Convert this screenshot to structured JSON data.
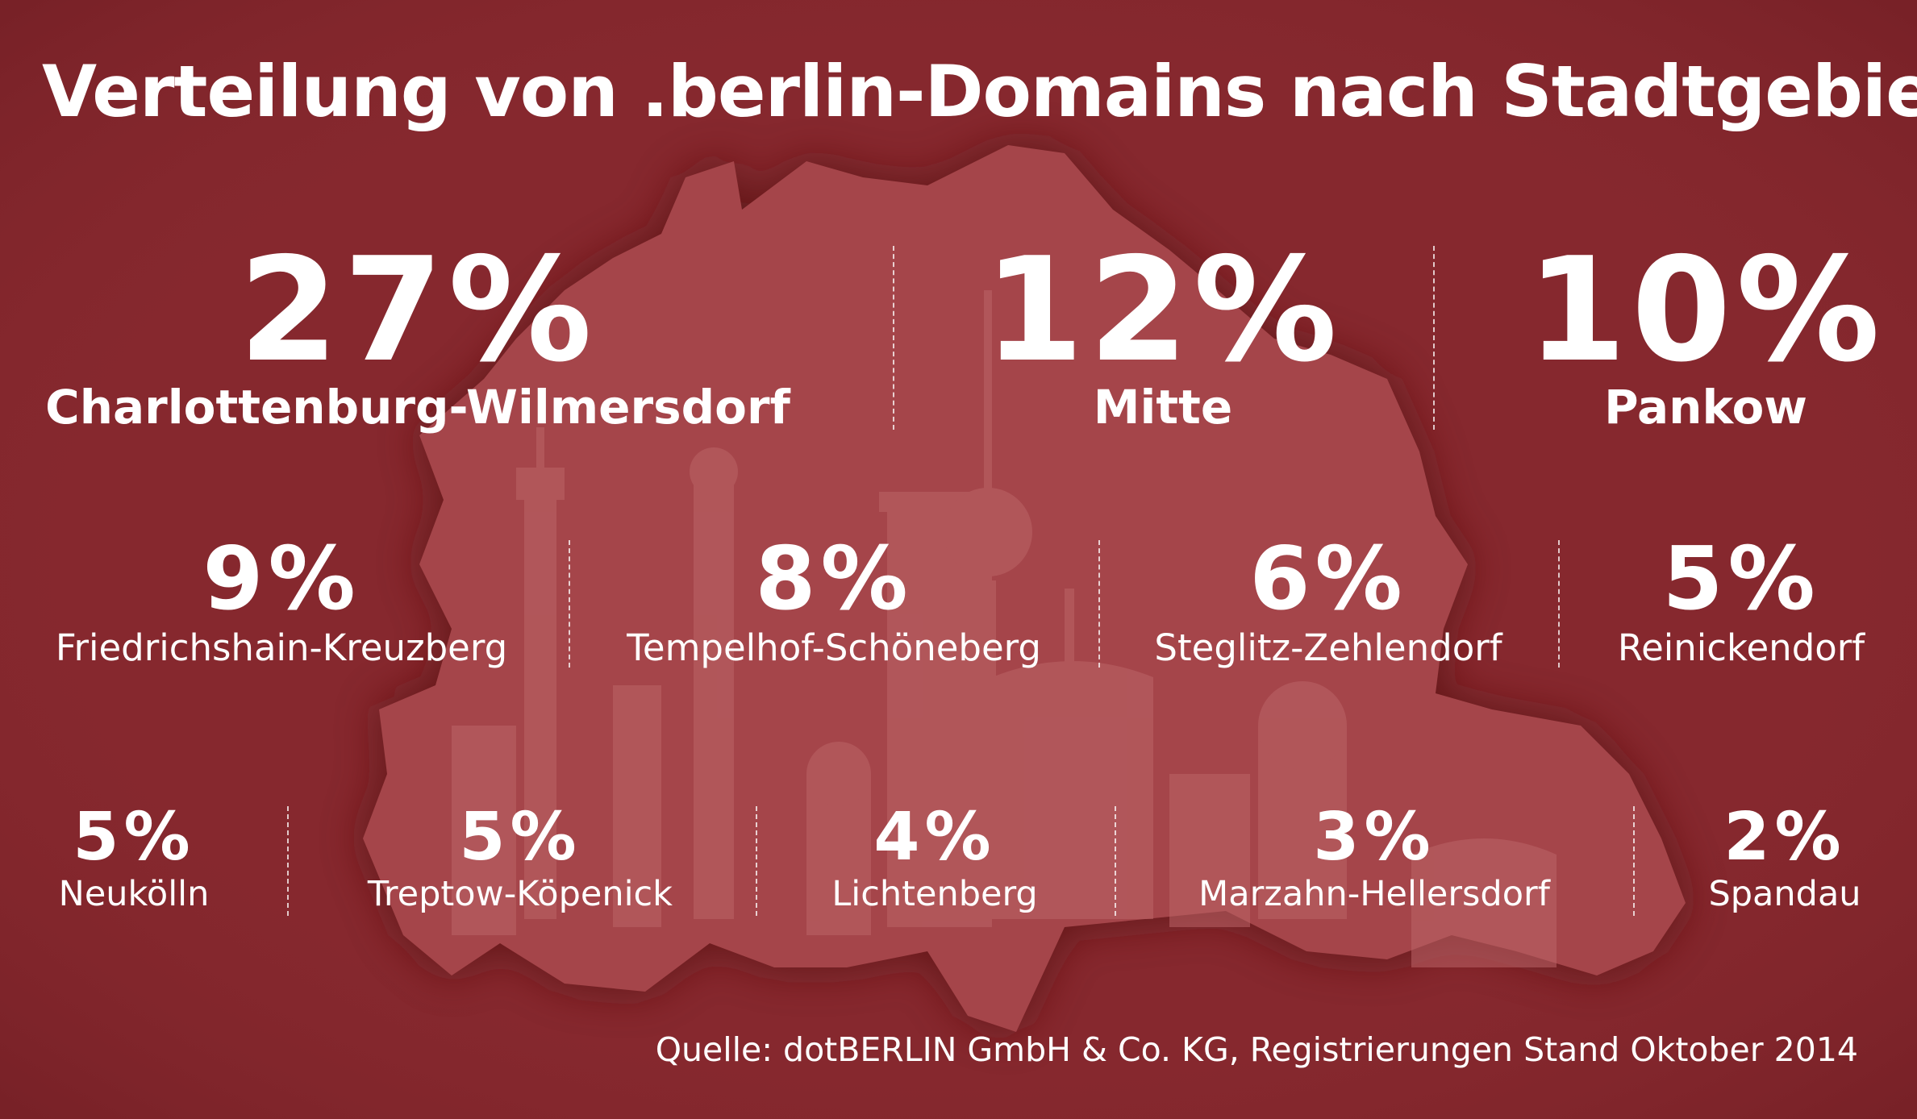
{
  "chart_data": {
    "type": "table",
    "title": "Verteilung von .berlin-Domains nach Stadtgebieten",
    "unit": "%",
    "categories": [
      "Charlottenburg-Wilmersdorf",
      "Mitte",
      "Pankow",
      "Friedrichshain-Kreuzberg",
      "Tempelhof-Schöneberg",
      "Steglitz-Zehlendorf",
      "Reinickendorf",
      "Neukölln",
      "Treptow-Köpenick",
      "Lichtenberg",
      "Marzahn-Hellersdorf",
      "Spandau"
    ],
    "values": [
      27,
      12,
      10,
      9,
      8,
      6,
      5,
      5,
      5,
      4,
      3,
      2
    ],
    "items": [
      {
        "value": 27,
        "value_label": "27%",
        "district": "Charlottenburg-Wilmersdorf"
      },
      {
        "value": 12,
        "value_label": "12%",
        "district": "Mitte"
      },
      {
        "value": 10,
        "value_label": "10%",
        "district": "Pankow"
      },
      {
        "value": 9,
        "value_label": "9%",
        "district": "Friedrichshain-Kreuzberg"
      },
      {
        "value": 8,
        "value_label": "8%",
        "district": "Tempelhof-Schöneberg"
      },
      {
        "value": 6,
        "value_label": "6%",
        "district": "Steglitz-Zehlendorf"
      },
      {
        "value": 5,
        "value_label": "5%",
        "district": "Reinickendorf"
      },
      {
        "value": 5,
        "value_label": "5%",
        "district": "Neukölln"
      },
      {
        "value": 5,
        "value_label": "5%",
        "district": "Treptow-Köpenick"
      },
      {
        "value": 4,
        "value_label": "4%",
        "district": "Lichtenberg"
      },
      {
        "value": 3,
        "value_label": "3%",
        "district": "Marzahn-Hellersdorf"
      },
      {
        "value": 2,
        "value_label": "2%",
        "district": "Spandau"
      }
    ],
    "source": "Quelle: dotBERLIN GmbH & Co. KG, Registrierungen Stand Oktober 2014"
  },
  "colors": {
    "background": "#86282e",
    "map_fill": "#a5454a",
    "map_shadow": "#5e1519",
    "skyline": "#bd6a6c",
    "text": "#ffffff"
  }
}
